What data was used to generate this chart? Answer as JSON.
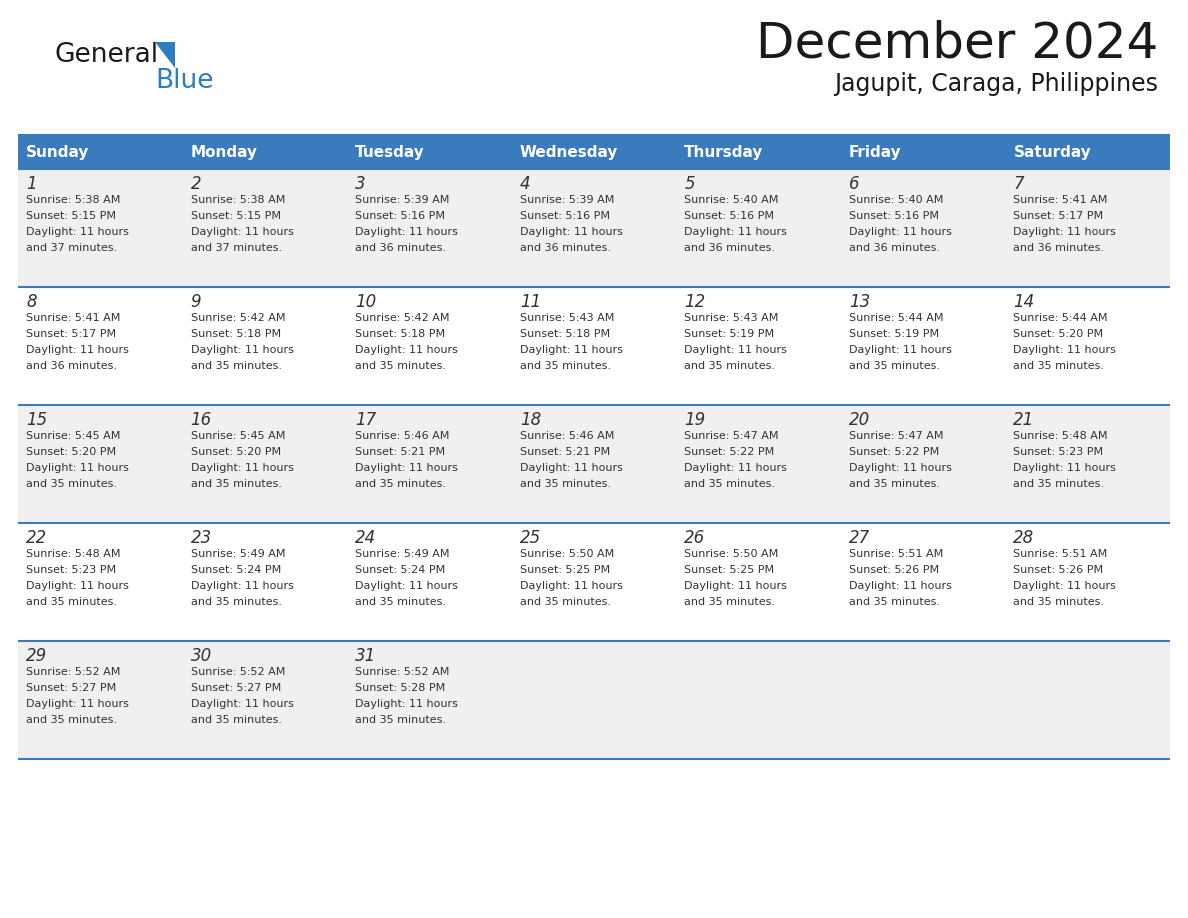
{
  "title": "December 2024",
  "subtitle": "Jagupit, Caraga, Philippines",
  "days_of_week": [
    "Sunday",
    "Monday",
    "Tuesday",
    "Wednesday",
    "Thursday",
    "Friday",
    "Saturday"
  ],
  "header_bg": "#3A7BBF",
  "header_text_color": "#FFFFFF",
  "row_bg_odd": "#F0F0F0",
  "row_bg_even": "#FFFFFF",
  "cell_text_color": "#333333",
  "day_num_color": "#333333",
  "divider_color": "#3A7BBF",
  "background_color": "#FFFFFF",
  "logo_general_color": "#1a1a1a",
  "logo_blue_color": "#2E7DC0",
  "logo_triangle_color": "#2E7DC0",
  "weeks": [
    {
      "days": [
        {
          "date": 1,
          "sunrise": "5:38 AM",
          "sunset": "5:15 PM",
          "daylight": "11 hours and 37 minutes."
        },
        {
          "date": 2,
          "sunrise": "5:38 AM",
          "sunset": "5:15 PM",
          "daylight": "11 hours and 37 minutes."
        },
        {
          "date": 3,
          "sunrise": "5:39 AM",
          "sunset": "5:16 PM",
          "daylight": "11 hours and 36 minutes."
        },
        {
          "date": 4,
          "sunrise": "5:39 AM",
          "sunset": "5:16 PM",
          "daylight": "11 hours and 36 minutes."
        },
        {
          "date": 5,
          "sunrise": "5:40 AM",
          "sunset": "5:16 PM",
          "daylight": "11 hours and 36 minutes."
        },
        {
          "date": 6,
          "sunrise": "5:40 AM",
          "sunset": "5:16 PM",
          "daylight": "11 hours and 36 minutes."
        },
        {
          "date": 7,
          "sunrise": "5:41 AM",
          "sunset": "5:17 PM",
          "daylight": "11 hours and 36 minutes."
        }
      ]
    },
    {
      "days": [
        {
          "date": 8,
          "sunrise": "5:41 AM",
          "sunset": "5:17 PM",
          "daylight": "11 hours and 36 minutes."
        },
        {
          "date": 9,
          "sunrise": "5:42 AM",
          "sunset": "5:18 PM",
          "daylight": "11 hours and 35 minutes."
        },
        {
          "date": 10,
          "sunrise": "5:42 AM",
          "sunset": "5:18 PM",
          "daylight": "11 hours and 35 minutes."
        },
        {
          "date": 11,
          "sunrise": "5:43 AM",
          "sunset": "5:18 PM",
          "daylight": "11 hours and 35 minutes."
        },
        {
          "date": 12,
          "sunrise": "5:43 AM",
          "sunset": "5:19 PM",
          "daylight": "11 hours and 35 minutes."
        },
        {
          "date": 13,
          "sunrise": "5:44 AM",
          "sunset": "5:19 PM",
          "daylight": "11 hours and 35 minutes."
        },
        {
          "date": 14,
          "sunrise": "5:44 AM",
          "sunset": "5:20 PM",
          "daylight": "11 hours and 35 minutes."
        }
      ]
    },
    {
      "days": [
        {
          "date": 15,
          "sunrise": "5:45 AM",
          "sunset": "5:20 PM",
          "daylight": "11 hours and 35 minutes."
        },
        {
          "date": 16,
          "sunrise": "5:45 AM",
          "sunset": "5:20 PM",
          "daylight": "11 hours and 35 minutes."
        },
        {
          "date": 17,
          "sunrise": "5:46 AM",
          "sunset": "5:21 PM",
          "daylight": "11 hours and 35 minutes."
        },
        {
          "date": 18,
          "sunrise": "5:46 AM",
          "sunset": "5:21 PM",
          "daylight": "11 hours and 35 minutes."
        },
        {
          "date": 19,
          "sunrise": "5:47 AM",
          "sunset": "5:22 PM",
          "daylight": "11 hours and 35 minutes."
        },
        {
          "date": 20,
          "sunrise": "5:47 AM",
          "sunset": "5:22 PM",
          "daylight": "11 hours and 35 minutes."
        },
        {
          "date": 21,
          "sunrise": "5:48 AM",
          "sunset": "5:23 PM",
          "daylight": "11 hours and 35 minutes."
        }
      ]
    },
    {
      "days": [
        {
          "date": 22,
          "sunrise": "5:48 AM",
          "sunset": "5:23 PM",
          "daylight": "11 hours and 35 minutes."
        },
        {
          "date": 23,
          "sunrise": "5:49 AM",
          "sunset": "5:24 PM",
          "daylight": "11 hours and 35 minutes."
        },
        {
          "date": 24,
          "sunrise": "5:49 AM",
          "sunset": "5:24 PM",
          "daylight": "11 hours and 35 minutes."
        },
        {
          "date": 25,
          "sunrise": "5:50 AM",
          "sunset": "5:25 PM",
          "daylight": "11 hours and 35 minutes."
        },
        {
          "date": 26,
          "sunrise": "5:50 AM",
          "sunset": "5:25 PM",
          "daylight": "11 hours and 35 minutes."
        },
        {
          "date": 27,
          "sunrise": "5:51 AM",
          "sunset": "5:26 PM",
          "daylight": "11 hours and 35 minutes."
        },
        {
          "date": 28,
          "sunrise": "5:51 AM",
          "sunset": "5:26 PM",
          "daylight": "11 hours and 35 minutes."
        }
      ]
    },
    {
      "days": [
        {
          "date": 29,
          "sunrise": "5:52 AM",
          "sunset": "5:27 PM",
          "daylight": "11 hours and 35 minutes."
        },
        {
          "date": 30,
          "sunrise": "5:52 AM",
          "sunset": "5:27 PM",
          "daylight": "11 hours and 35 minutes."
        },
        {
          "date": 31,
          "sunrise": "5:52 AM",
          "sunset": "5:28 PM",
          "daylight": "11 hours and 35 minutes."
        },
        {
          "date": null,
          "sunrise": null,
          "sunset": null,
          "daylight": null
        },
        {
          "date": null,
          "sunrise": null,
          "sunset": null,
          "daylight": null
        },
        {
          "date": null,
          "sunrise": null,
          "sunset": null,
          "daylight": null
        },
        {
          "date": null,
          "sunrise": null,
          "sunset": null,
          "daylight": null
        }
      ]
    }
  ]
}
